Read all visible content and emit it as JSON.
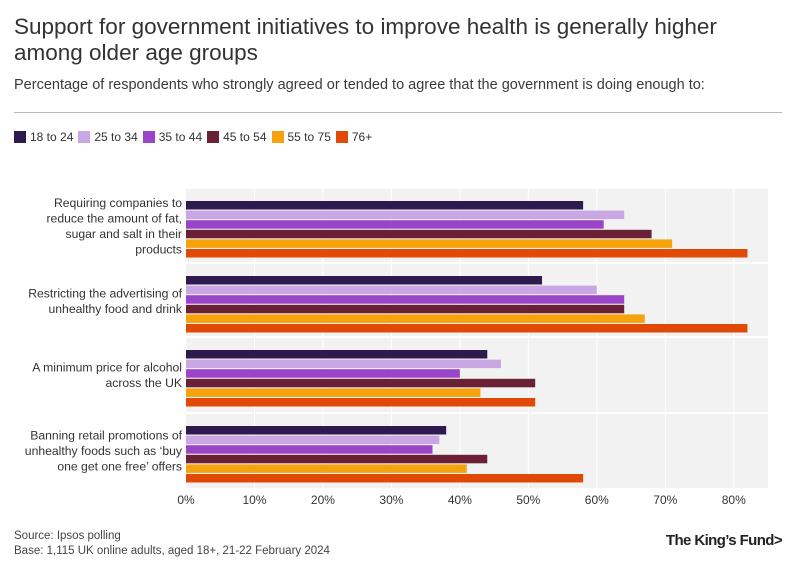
{
  "header": {
    "title": "Support for government initiatives to improve health is generally higher among older age groups",
    "subtitle": "Percentage of respondents who strongly agreed or tended to agree that the government is doing enough to:"
  },
  "legend": {
    "items": [
      {
        "label": "18 to 24",
        "color": "#2e1a4f"
      },
      {
        "label": "25 to 34",
        "color": "#c9a6e4"
      },
      {
        "label": "35 to 44",
        "color": "#9a44c8"
      },
      {
        "label": "45 to 54",
        "color": "#6b2135"
      },
      {
        "label": "55 to 75",
        "color": "#f5a20c"
      },
      {
        "label": "76+",
        "color": "#e04a06"
      }
    ]
  },
  "chart_data": {
    "type": "bar",
    "orientation": "horizontal",
    "title": "Support for government initiatives to improve health is generally higher among older age groups",
    "categories": [
      "Requiring companies to reduce the amount of fat, sugar and salt in their products",
      "Restricting the advertising of unhealthy food and drink",
      "A minimum price for alcohol across the UK",
      "Banning retail promotions of unhealthy foods such as ‘buy one get one free’ offers"
    ],
    "category_lines": [
      [
        "Requiring companies to",
        "reduce the amount of fat,",
        "sugar and salt in their",
        "products"
      ],
      [
        "Restricting the advertising of",
        "unhealthy food and drink"
      ],
      [
        "A minimum price for alcohol",
        "across the UK"
      ],
      [
        "Banning retail promotions of",
        "unhealthy foods such as ‘buy",
        "one get one free’ offers"
      ]
    ],
    "series": [
      {
        "name": "18 to 24",
        "values": [
          58,
          52,
          44,
          38
        ]
      },
      {
        "name": "25 to 34",
        "values": [
          64,
          60,
          46,
          37
        ]
      },
      {
        "name": "35 to 44",
        "values": [
          61,
          64,
          40,
          36
        ]
      },
      {
        "name": "45 to 54",
        "values": [
          68,
          64,
          51,
          44
        ]
      },
      {
        "name": "55 to 75",
        "values": [
          71,
          67,
          43,
          41
        ]
      },
      {
        "name": "76+",
        "values": [
          82,
          82,
          51,
          58
        ]
      }
    ],
    "xlim": [
      0,
      85
    ],
    "xticks": [
      0,
      10,
      20,
      30,
      40,
      50,
      60,
      70,
      80
    ],
    "xtick_labels": [
      "0%",
      "10%",
      "20%",
      "30%",
      "40%",
      "50%",
      "60%",
      "70%",
      "80%"
    ],
    "xlabel": "",
    "ylabel": "",
    "grid": true,
    "legend_position": "top-left"
  },
  "footer": {
    "source": "Source: Ipsos polling",
    "base": "Base: 1,115 UK online adults, aged 18+, 21-22 February 2024",
    "logo": "The King’s Fund>"
  }
}
